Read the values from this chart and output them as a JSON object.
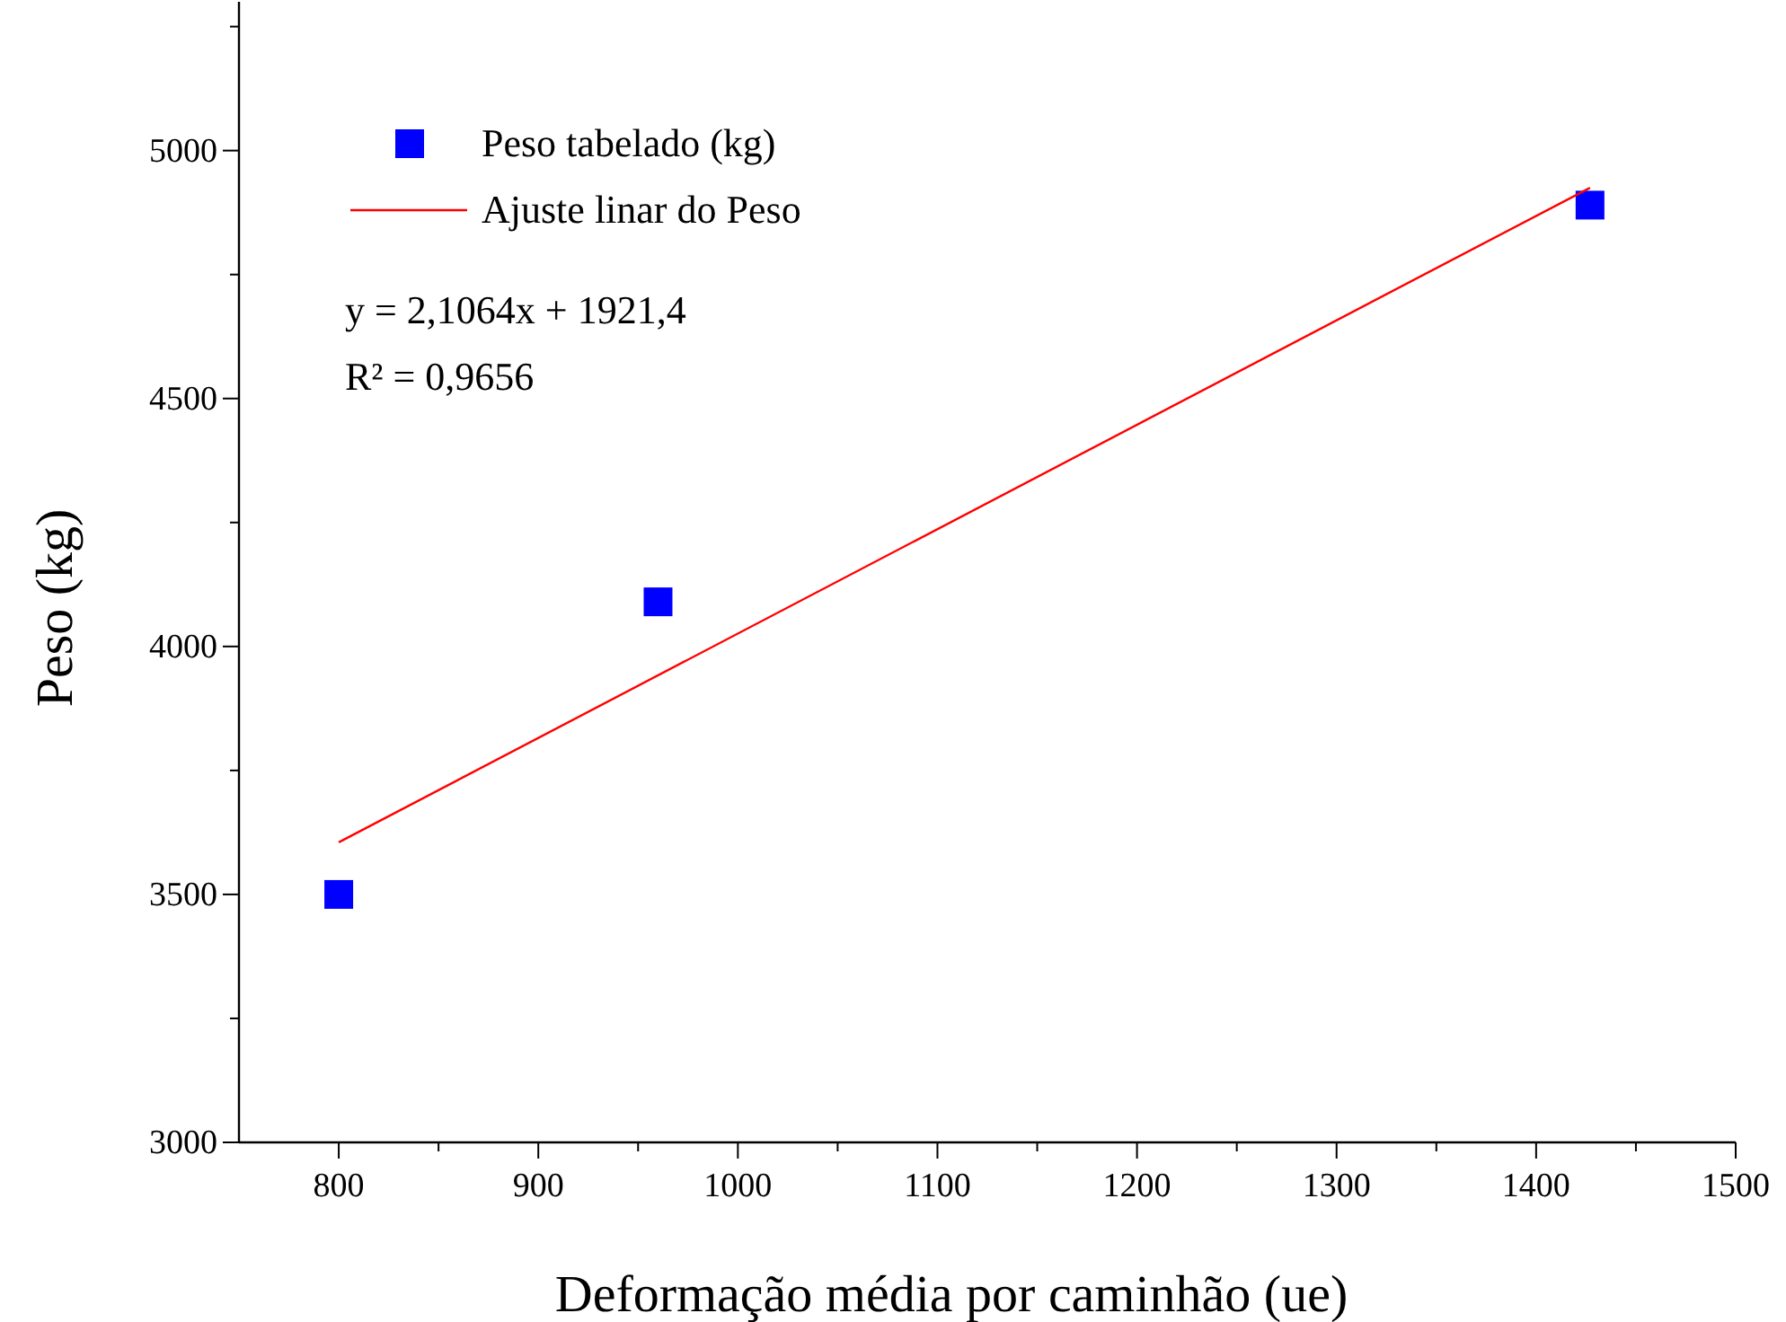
{
  "chart_data": {
    "type": "scatter",
    "xlabel": "Deformação média por caminhão (ue)",
    "ylabel": "Peso (kg)",
    "xlim": [
      750,
      1500
    ],
    "ylim": [
      3000,
      5300
    ],
    "xticks": [
      800,
      {
        "value": 850,
        "label": null
      },
      900,
      {
        "value": 950,
        "label": null
      },
      1000,
      {
        "value": 1050,
        "label": null
      },
      1100,
      {
        "value": 1150,
        "label": null
      },
      1200,
      {
        "value": 1250,
        "label": null
      },
      1300,
      {
        "value": 1350,
        "label": null
      },
      1400,
      {
        "value": 1450,
        "label": null
      },
      1500
    ],
    "yticks": [
      3000,
      {
        "value": 3250,
        "label": null
      },
      3500,
      {
        "value": 3750,
        "label": null
      },
      4000,
      {
        "value": 4250,
        "label": null
      },
      4500,
      {
        "value": 4750,
        "label": null
      },
      5000,
      {
        "value": 5250,
        "label": null
      }
    ],
    "series": [
      {
        "name": "Peso tabelado (kg)",
        "color": "#0000ff",
        "marker": "square",
        "x": [
          800,
          960,
          1427
        ],
        "values": [
          3500,
          4090,
          4890
        ]
      },
      {
        "name": "Ajuste linar do Peso",
        "type": "line",
        "color": "#ff0000",
        "line_style": "solid",
        "x": [
          800,
          1427
        ],
        "values": [
          3605,
          4925
        ]
      }
    ],
    "annotations": [
      "y = 2,1064x + 1921,4",
      "R² = 0,9656"
    ],
    "legend": "top left",
    "grid": false
  }
}
